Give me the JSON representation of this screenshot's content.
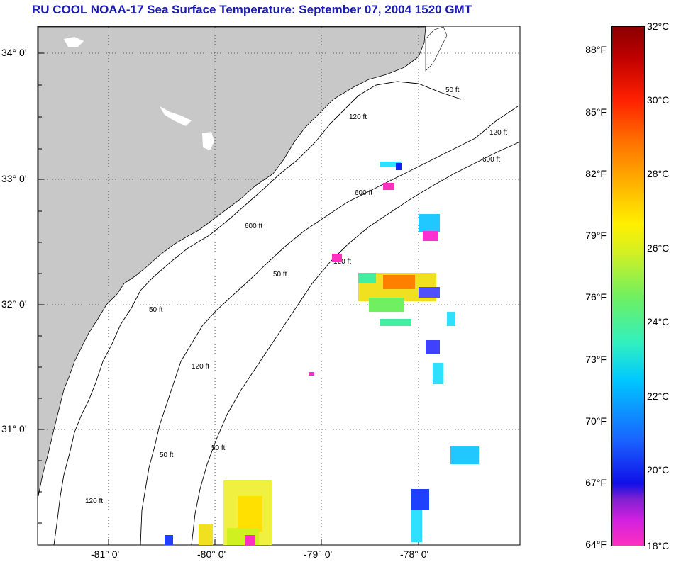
{
  "title": "RU COOL  NOAA-17  Sea Surface Temperature:  September 07, 2004 1520 GMT",
  "latitude_labels": [
    "34° 0'",
    "33° 0'",
    "32° 0'",
    "31° 0'"
  ],
  "longitude_labels": [
    "-81° 0'",
    "-80° 0'",
    "-79° 0'",
    "-78° 0'"
  ],
  "contour_labels": [
    "50 ft",
    "120 ft",
    "600 ft",
    "50 ft",
    "120 ft",
    "600 ft",
    "50 ft",
    "120 ft",
    "600 ft",
    "120 ft",
    "50 ft",
    "50 ft",
    "120 ft"
  ],
  "colorbar": {
    "fahrenheit": [
      "88°F",
      "85°F",
      "82°F",
      "79°F",
      "76°F",
      "73°F",
      "70°F",
      "67°F",
      "64°F"
    ],
    "celsius": [
      "32°C",
      "30°C",
      "28°C",
      "26°C",
      "24°C",
      "22°C",
      "20°C",
      "18°C"
    ]
  },
  "colors": {
    "land": "#c8c8c8",
    "title": "#1a1ab4",
    "grid": "#000000"
  }
}
